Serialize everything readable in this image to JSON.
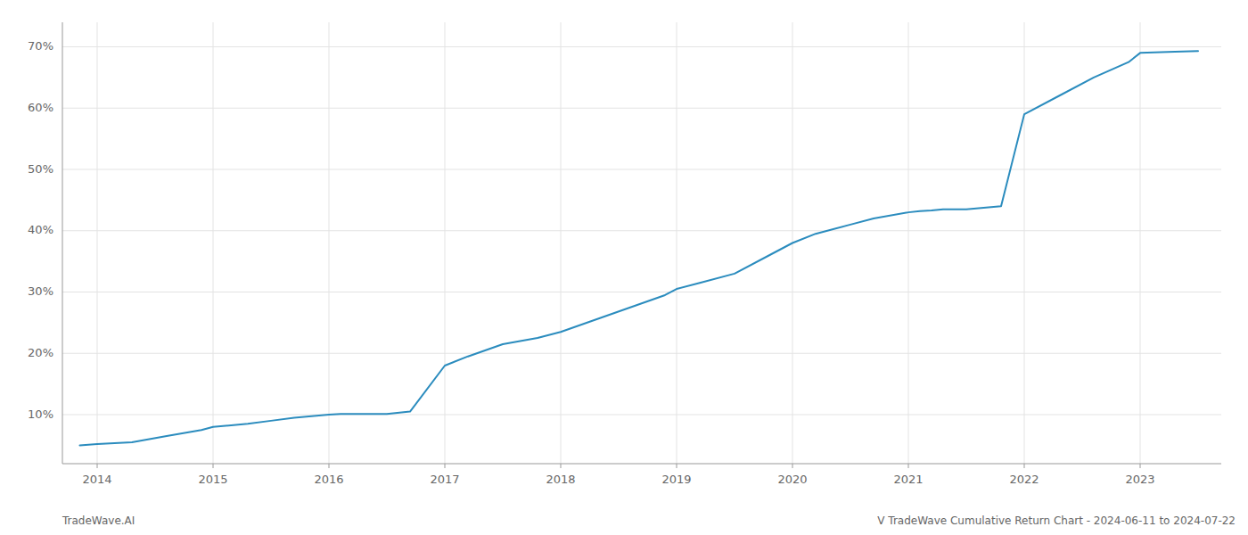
{
  "chart_data": {
    "type": "line",
    "x": [
      2013.85,
      2014.0,
      2014.3,
      2014.6,
      2014.9,
      2015.0,
      2015.3,
      2015.5,
      2015.7,
      2016.0,
      2016.1,
      2016.3,
      2016.5,
      2016.7,
      2017.0,
      2017.2,
      2017.5,
      2017.8,
      2018.0,
      2018.3,
      2018.6,
      2018.9,
      2019.0,
      2019.2,
      2019.5,
      2019.8,
      2020.0,
      2020.2,
      2020.5,
      2020.7,
      2021.0,
      2021.1,
      2021.2,
      2021.3,
      2021.5,
      2021.8,
      2022.0,
      2022.3,
      2022.6,
      2022.9,
      2023.0,
      2023.3,
      2023.5
    ],
    "values": [
      5.0,
      5.2,
      5.5,
      6.5,
      7.5,
      8.0,
      8.5,
      9.0,
      9.5,
      10.0,
      10.1,
      10.1,
      10.1,
      10.5,
      18.0,
      19.5,
      21.5,
      22.5,
      23.5,
      25.5,
      27.5,
      29.5,
      30.5,
      31.5,
      33.0,
      36.0,
      38.0,
      39.5,
      41.0,
      42.0,
      43.0,
      43.2,
      43.3,
      43.5,
      43.5,
      44.0,
      59.0,
      62.0,
      65.0,
      67.5,
      69.0,
      69.2,
      69.3
    ],
    "color": "#2b8cbe",
    "xlim": [
      2013.7,
      2023.7
    ],
    "ylim": [
      2,
      74
    ],
    "xticks": [
      2014,
      2015,
      2016,
      2017,
      2018,
      2019,
      2020,
      2021,
      2022,
      2023
    ],
    "yticks": [
      {
        "value": 10,
        "label": "10%"
      },
      {
        "value": 20,
        "label": "20%"
      },
      {
        "value": 30,
        "label": "30%"
      },
      {
        "value": 40,
        "label": "40%"
      },
      {
        "value": 50,
        "label": "50%"
      },
      {
        "value": 60,
        "label": "60%"
      },
      {
        "value": 70,
        "label": "70%"
      }
    ],
    "grid": true,
    "annotations": [
      "TradeWave.AI",
      "V TradeWave Cumulative Return Chart - 2024-06-11 to 2024-07-22"
    ]
  }
}
